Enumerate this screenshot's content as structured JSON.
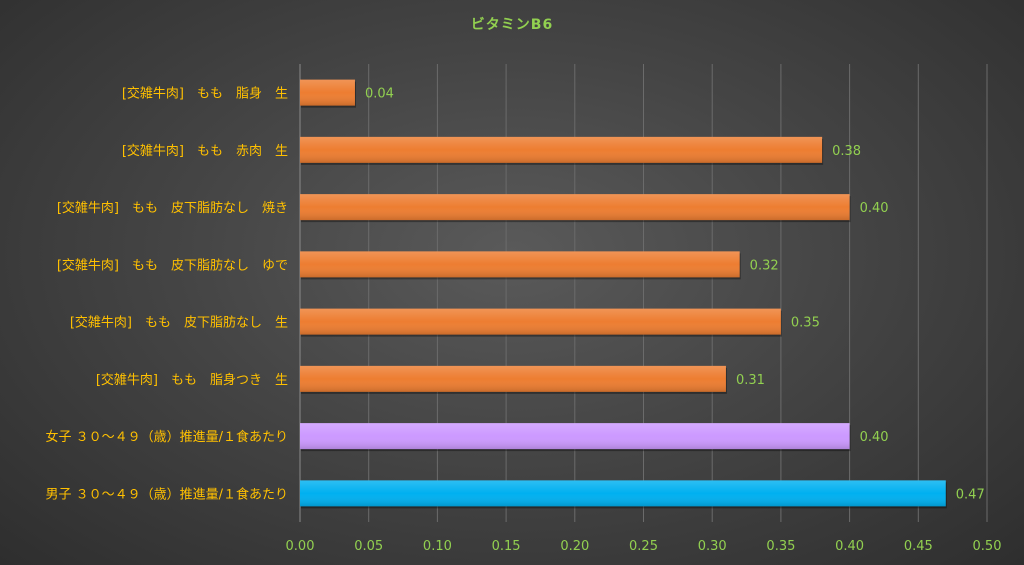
{
  "chart_data": {
    "type": "bar",
    "orientation": "horizontal",
    "title": "ビタミンB6",
    "categories": [
      "[交雑牛肉]　もも　脂身　生",
      "[交雑牛肉]　もも　赤肉　生",
      "[交雑牛肉]　もも　皮下脂肪なし　焼き",
      "[交雑牛肉]　もも　皮下脂肪なし　ゆで",
      "[交雑牛肉]　もも　皮下脂肪なし　生",
      "[交雑牛肉]　もも　脂身つき　生",
      "女子 ３０～４９（歳）推進量/１食あたり",
      "男子 ３０～４９（歳）推進量/１食あたり"
    ],
    "values": [
      0.04,
      0.38,
      0.4,
      0.32,
      0.35,
      0.31,
      0.4,
      0.47
    ],
    "data_labels": [
      "0.04",
      "0.38",
      "0.40",
      "0.32",
      "0.35",
      "0.31",
      "0.40",
      "0.47"
    ],
    "bar_colors": [
      "#ed7d31",
      "#ed7d31",
      "#ed7d31",
      "#ed7d31",
      "#ed7d31",
      "#ed7d31",
      "#cc99ff",
      "#00b0f0"
    ],
    "xlim": [
      0,
      0.5
    ],
    "x_ticks": [
      "0.00",
      "0.05",
      "0.10",
      "0.15",
      "0.20",
      "0.25",
      "0.30",
      "0.35",
      "0.40",
      "0.45",
      "0.50"
    ],
    "xlabel": "",
    "ylabel": "",
    "grid": true,
    "legend": "none"
  }
}
